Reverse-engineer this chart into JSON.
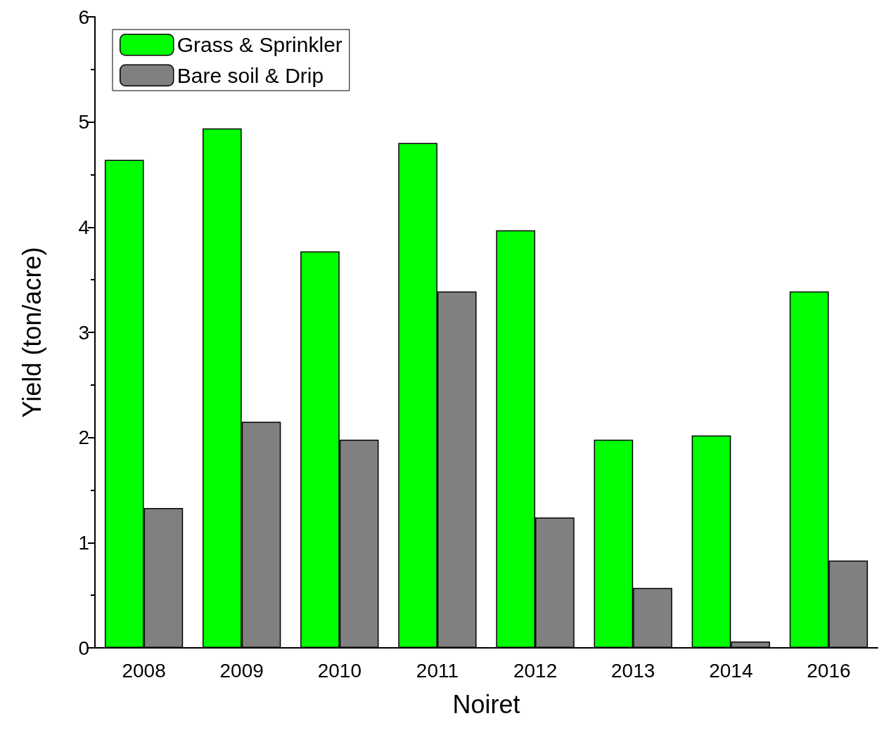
{
  "chart_data": {
    "type": "bar",
    "xlabel": "Noiret",
    "ylabel": "Yield (ton/acre)",
    "categories": [
      "2008",
      "2009",
      "2010",
      "2011",
      "2012",
      "2013",
      "2014",
      "2016"
    ],
    "series": [
      {
        "name": "Grass & Sprinkler",
        "color": "#00ff00",
        "values": [
          4.64,
          4.94,
          3.77,
          4.8,
          3.97,
          1.98,
          2.02,
          3.39
        ]
      },
      {
        "name": "Bare soil & Drip",
        "color": "#808080",
        "values": [
          1.33,
          2.15,
          1.98,
          3.39,
          1.24,
          0.57,
          0.06,
          0.83
        ]
      }
    ],
    "ylim": [
      0,
      6
    ],
    "yticks": [
      0,
      1,
      2,
      3,
      4,
      5,
      6
    ],
    "grid": false,
    "legend": "top left"
  }
}
